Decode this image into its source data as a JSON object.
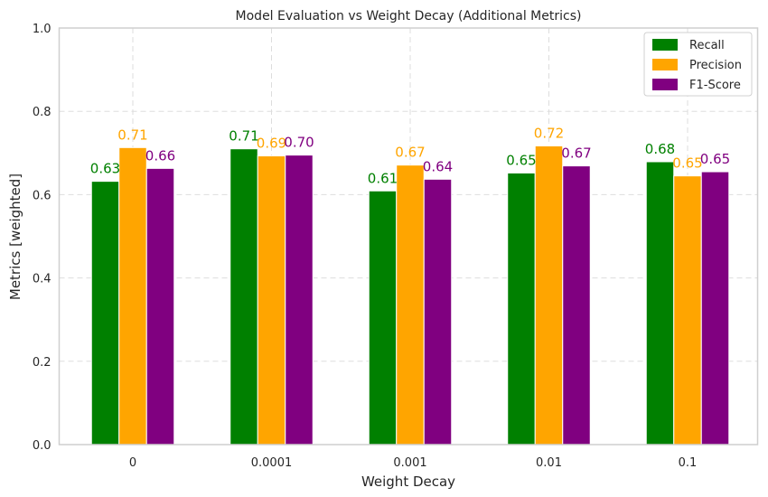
{
  "chart_data": {
    "type": "bar",
    "title": "Model Evaluation vs Weight Decay (Additional Metrics)",
    "xlabel": "Weight Decay",
    "ylabel": "Metrics [weighted]",
    "categories": [
      "0",
      "0.0001",
      "0.001",
      "0.01",
      "0.1"
    ],
    "ylim": [
      0.0,
      1.0
    ],
    "yticks": [
      0.0,
      0.2,
      0.4,
      0.6,
      0.8,
      1.0
    ],
    "ytick_labels": [
      "0.0",
      "0.2",
      "0.4",
      "0.6",
      "0.8",
      "1.0"
    ],
    "grid": true,
    "legend_position": "top-right",
    "series": [
      {
        "name": "Recall",
        "color": "#008000",
        "values": [
          0.632,
          0.71,
          0.609,
          0.652,
          0.679
        ],
        "labels": [
          "0.63",
          "0.71",
          "0.61",
          "0.65",
          "0.68"
        ]
      },
      {
        "name": "Precision",
        "color": "#FFA500",
        "values": [
          0.713,
          0.693,
          0.671,
          0.717,
          0.645
        ],
        "labels": [
          "0.71",
          "0.69",
          "0.67",
          "0.72",
          "0.65"
        ]
      },
      {
        "name": "F1-Score",
        "color": "#800080",
        "values": [
          0.663,
          0.695,
          0.637,
          0.669,
          0.655
        ],
        "labels": [
          "0.66",
          "0.70",
          "0.64",
          "0.67",
          "0.65"
        ]
      }
    ]
  }
}
